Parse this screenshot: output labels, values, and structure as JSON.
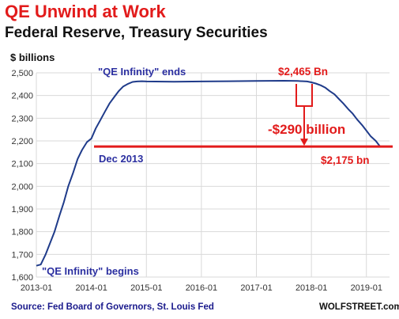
{
  "header": {
    "title": "QE Unwind at Work",
    "subtitle": "Federal Reserve, Treasury Securities"
  },
  "footer": {
    "source": "Source: Fed Board of Governors, St. Louis Fed",
    "brand": "WOLFSTREET.com"
  },
  "colors": {
    "series": "#1f3b8a",
    "reference_line": "#e21b1b",
    "annotation_blue": "#2b2fa0",
    "annotation_red": "#e21b1b",
    "grid": "#d9d9d9"
  },
  "chart_data": {
    "type": "line",
    "title": "QE Unwind at Work",
    "subtitle": "Federal Reserve, Treasury Securities",
    "ylabel": "$ billions",
    "xlabel": "",
    "ylim": [
      1600,
      2500
    ],
    "xlim": [
      2013.0,
      2019.42
    ],
    "grid": true,
    "y_ticks": [
      1600,
      1700,
      1800,
      1900,
      2000,
      2100,
      2200,
      2300,
      2400,
      2500
    ],
    "y_tick_labels": [
      "1,600",
      "1,700",
      "1,800",
      "1,900",
      "2,000",
      "2,100",
      "2,200",
      "2,300",
      "2,400",
      "2,500"
    ],
    "x_ticks": [
      2013,
      2014,
      2015,
      2016,
      2017,
      2018,
      2019
    ],
    "x_tick_labels": [
      "2013-01",
      "2014-01",
      "2015-01",
      "2016-01",
      "2017-01",
      "2018-01",
      "2019-01"
    ],
    "series": [
      {
        "x": [
          2013.0,
          2013.08,
          2013.17,
          2013.25,
          2013.33,
          2013.42,
          2013.5,
          2013.58,
          2013.67,
          2013.75,
          2013.83,
          2013.92,
          2014.0,
          2014.08,
          2014.17,
          2014.25,
          2014.33,
          2014.42,
          2014.5,
          2014.58,
          2014.67,
          2014.75,
          2014.83,
          2014.92,
          2015.0,
          2015.5,
          2016.0,
          2016.5,
          2017.0,
          2017.5,
          2017.75,
          2017.92,
          2018.0,
          2018.08,
          2018.17,
          2018.25,
          2018.33,
          2018.42,
          2018.5,
          2018.58,
          2018.67,
          2018.75,
          2018.83,
          2018.92,
          2019.0,
          2019.08,
          2019.17,
          2019.25
        ],
        "values": [
          1650,
          1655,
          1700,
          1750,
          1800,
          1870,
          1930,
          2000,
          2060,
          2120,
          2160,
          2195,
          2210,
          2255,
          2295,
          2330,
          2365,
          2395,
          2420,
          2440,
          2452,
          2460,
          2462,
          2463,
          2462,
          2461,
          2462,
          2463,
          2464,
          2465,
          2464,
          2462,
          2458,
          2453,
          2445,
          2435,
          2420,
          2405,
          2385,
          2365,
          2340,
          2320,
          2295,
          2270,
          2245,
          2220,
          2200,
          2175
        ]
      }
    ],
    "reference_line": {
      "y": 2175
    },
    "annotations": {
      "qe_begins": "\"QE Infinity\" begins",
      "qe_ends": "\"QE Infinity\" ends",
      "peak": "$2,465 Bn",
      "drop": "-$290 billion",
      "dec2013": "Dec 2013",
      "current": "$2,175 bn"
    }
  }
}
